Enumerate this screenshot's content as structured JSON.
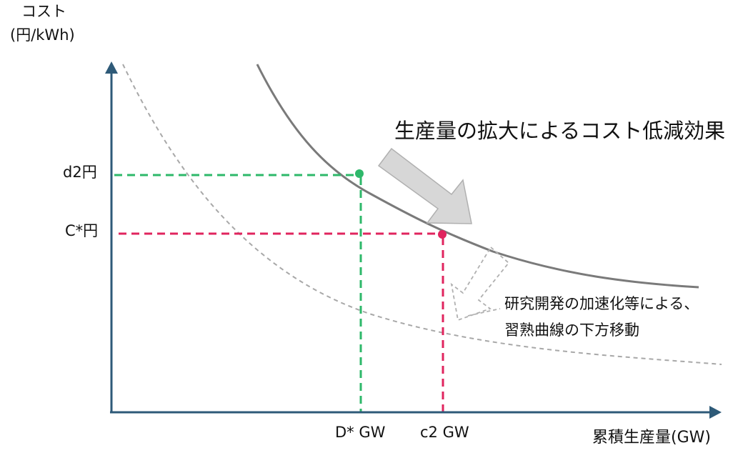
{
  "y_axis_label_line1": "コスト",
  "y_axis_label_line2": "(円/kWh)",
  "x_axis_label": "累積生産量(GW)",
  "d2_cost_label": "d2円",
  "c_star_cost_label": "C*円",
  "d_star_gw_label": "D* GW",
  "c2_gw_label": "c2 GW",
  "scale_effect_label": "生産量の拡大によるコスト低減効果",
  "rnd_effect_line1": "研究開発の加速化等による、",
  "rnd_effect_line2": "習熟曲線の下方移動",
  "colors": {
    "axis": "#2e5a78",
    "solid_curve": "#7a7a7a",
    "dashed_curve": "#a8a8a8",
    "green_guide": "#2eb86a",
    "pink_guide": "#e0245e",
    "arrow_fill": "#d7d7d7",
    "arrow_stroke": "#b0b0b0"
  }
}
